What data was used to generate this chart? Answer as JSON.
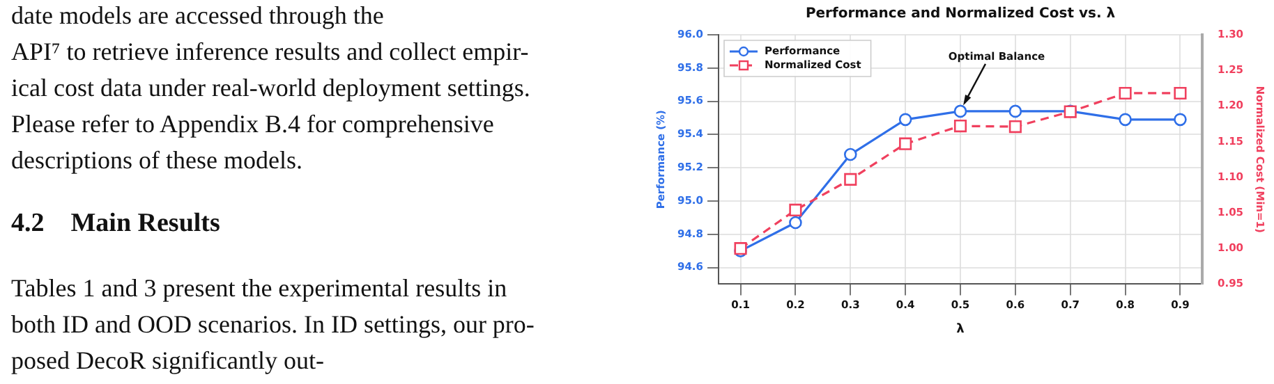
{
  "chart_data": {
    "type": "line",
    "title": "Performance and Normalized Cost vs. λ",
    "xlabel": "λ",
    "ylabel": "Performance (%)",
    "y2label": "Normalized Cost (Min=1)",
    "x": [
      0.1,
      0.2,
      0.3,
      0.4,
      0.5,
      0.6,
      0.7,
      0.8,
      0.9
    ],
    "series": [
      {
        "name": "Performance",
        "color": "#2f6fe8",
        "marker": "circle",
        "line_style": "solid",
        "values": [
          94.7,
          94.87,
          95.28,
          95.49,
          95.54,
          95.54,
          95.54,
          95.49,
          95.49
        ]
      },
      {
        "name": "Normalized Cost",
        "color": "#f0405e",
        "marker": "square",
        "line_style": "dashed",
        "axis": "y2",
        "values": [
          1.0,
          1.054,
          1.097,
          1.147,
          1.172,
          1.171,
          1.192,
          1.218,
          1.218
        ]
      }
    ],
    "xlim": [
      0.06,
      0.94
    ],
    "xticks": [
      0.1,
      0.2,
      0.3,
      0.4,
      0.5,
      0.6,
      0.7,
      0.8,
      0.9
    ],
    "ylim": [
      94.5,
      96.0
    ],
    "yticks": [
      {
        "value": 94.6,
        "label": "94.6"
      },
      {
        "value": 94.8,
        "label": "94.8"
      },
      {
        "value": 95.0,
        "label": "95.0"
      },
      {
        "value": 95.2,
        "label": "95.2"
      },
      {
        "value": 95.4,
        "label": "95.4"
      },
      {
        "value": 95.6,
        "label": "95.6"
      },
      {
        "value": 95.8,
        "label": "95.8"
      },
      {
        "value": 96.0,
        "label": "96.0"
      }
    ],
    "y2lim": [
      0.95,
      1.3
    ],
    "y2ticks": [
      {
        "value": 0.95,
        "label": "0.95"
      },
      {
        "value": 1.0,
        "label": "1.00"
      },
      {
        "value": 1.05,
        "label": "1.05"
      },
      {
        "value": 1.1,
        "label": "1.10"
      },
      {
        "value": 1.15,
        "label": "1.15"
      },
      {
        "value": 1.2,
        "label": "1.20"
      },
      {
        "value": 1.25,
        "label": "1.25"
      },
      {
        "value": 1.3,
        "label": "1.30"
      }
    ],
    "grid": true,
    "legend": "top left",
    "annotations": [
      {
        "text": "Optimal Balance",
        "x": 0.5,
        "y": 95.54
      },
      "date models are accessed through the",
      "API⁷ to retrieve inference results and collect empir-",
      "ical cost data under real-world deployment settings.",
      "Please refer to Appendix B.4 for comprehensive",
      "descriptions of these models.",
      "4.2    Main Results",
      "Tables 1 and 3 present the experimental results in",
      "both ID and OOD scenarios. In ID settings, our pro-",
      "posed DecoR significantly out-"
    ]
  }
}
